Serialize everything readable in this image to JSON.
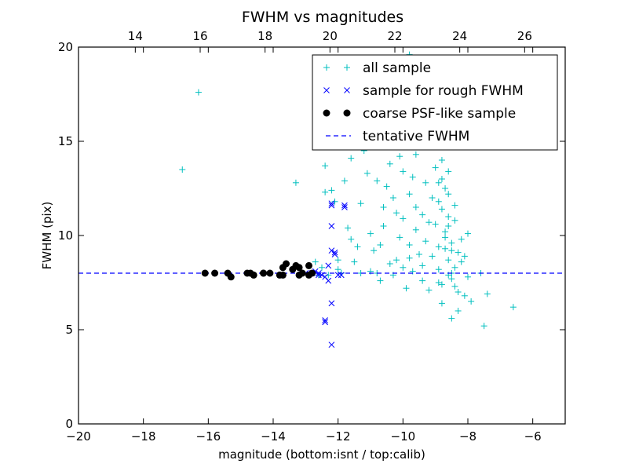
{
  "chart_data": {
    "type": "scatter",
    "title": "FWHM vs magnitudes",
    "xlabel": "magnitude (bottom:isnt / top:calib)",
    "ylabel": "FWHM (pix)",
    "xlim": [
      -20,
      -5
    ],
    "ylim": [
      0,
      20
    ],
    "x_ticks": [
      -20,
      -18,
      -16,
      -14,
      -12,
      -10,
      -8,
      -6
    ],
    "x_tick_labels": [
      "−20",
      "−18",
      "−16",
      "−14",
      "−12",
      "−10",
      "−8",
      "−6"
    ],
    "y_ticks": [
      0,
      5,
      10,
      15,
      20
    ],
    "y_tick_labels": [
      "0",
      "5",
      "10",
      "15",
      "20"
    ],
    "top_axis": {
      "offset": 32.25,
      "ticks": [
        14,
        16,
        18,
        20,
        22,
        24,
        26
      ],
      "tick_labels": [
        "14",
        "16",
        "18",
        "20",
        "22",
        "24",
        "26"
      ]
    },
    "grid": false,
    "legend_position": "top-right",
    "colors": {
      "all_sample": "#00bfbf",
      "rough": "#0000ff",
      "coarse": "#000000",
      "tentative": "#0000ff"
    },
    "series": [
      {
        "name": "all sample",
        "marker": "plus",
        "points": [
          [
            -16.8,
            13.5
          ],
          [
            -16.3,
            17.6
          ],
          [
            -13.3,
            12.8
          ],
          [
            -12.4,
            13.7
          ],
          [
            -12.4,
            12.3
          ],
          [
            -12.2,
            12.4
          ],
          [
            -12.0,
            8.2
          ],
          [
            -11.9,
            8.0
          ],
          [
            -12.3,
            7.9
          ],
          [
            -12.5,
            8.3
          ],
          [
            -11.8,
            12.9
          ],
          [
            -11.6,
            14.1
          ],
          [
            -11.6,
            9.8
          ],
          [
            -11.3,
            8.0
          ],
          [
            -11.2,
            14.5
          ],
          [
            -11.1,
            13.3
          ],
          [
            -11.0,
            8.1
          ],
          [
            -10.8,
            8.0
          ],
          [
            -10.7,
            9.5
          ],
          [
            -10.6,
            10.5
          ],
          [
            -10.5,
            12.6
          ],
          [
            -10.4,
            8.5
          ],
          [
            -10.3,
            7.9
          ],
          [
            -10.2,
            11.2
          ],
          [
            -10.1,
            9.9
          ],
          [
            -10.0,
            13.4
          ],
          [
            -9.9,
            7.2
          ],
          [
            -9.8,
            12.2
          ],
          [
            -9.8,
            8.8
          ],
          [
            -9.6,
            11.5
          ],
          [
            -9.5,
            9.0
          ],
          [
            -9.4,
            7.6
          ],
          [
            -9.3,
            12.8
          ],
          [
            -9.2,
            10.7
          ],
          [
            -9.1,
            8.9
          ],
          [
            -9.0,
            13.6
          ],
          [
            -8.9,
            11.8
          ],
          [
            -8.9,
            9.4
          ],
          [
            -8.8,
            7.4
          ],
          [
            -8.7,
            12.5
          ],
          [
            -8.7,
            10.2
          ],
          [
            -8.6,
            8.7
          ],
          [
            -8.6,
            11.0
          ],
          [
            -8.5,
            9.6
          ],
          [
            -8.5,
            7.7
          ],
          [
            -8.4,
            10.8
          ],
          [
            -8.4,
            8.3
          ],
          [
            -8.3,
            9.1
          ],
          [
            -8.3,
            7.0
          ],
          [
            -8.2,
            8.6
          ],
          [
            -8.1,
            6.8
          ],
          [
            -8.0,
            7.8
          ],
          [
            -7.9,
            6.5
          ],
          [
            -7.6,
            8.0
          ],
          [
            -7.5,
            5.2
          ],
          [
            -7.4,
            6.9
          ],
          [
            -6.6,
            6.2
          ],
          [
            -8.6,
            12.2
          ],
          [
            -8.8,
            11.4
          ],
          [
            -9.0,
            10.6
          ],
          [
            -8.7,
            9.9
          ],
          [
            -8.5,
            9.2
          ],
          [
            -9.3,
            9.7
          ],
          [
            -9.6,
            10.3
          ],
          [
            -10.0,
            10.9
          ],
          [
            -10.2,
            8.7
          ],
          [
            -10.7,
            7.6
          ],
          [
            -9.7,
            8.1
          ],
          [
            -8.9,
            8.2
          ],
          [
            -8.4,
            11.6
          ],
          [
            -8.6,
            10.5
          ],
          [
            -8.8,
            13.0
          ],
          [
            -9.1,
            12.0
          ],
          [
            -9.4,
            11.1
          ],
          [
            -8.2,
            9.8
          ],
          [
            -8.0,
            10.1
          ],
          [
            -8.1,
            8.9
          ],
          [
            -8.3,
            6.0
          ],
          [
            -8.5,
            5.6
          ],
          [
            -8.8,
            6.4
          ],
          [
            -9.2,
            7.1
          ],
          [
            -10.3,
            12.0
          ],
          [
            -10.6,
            11.5
          ],
          [
            -10.9,
            9.2
          ],
          [
            -11.4,
            9.4
          ],
          [
            -11.7,
            10.4
          ],
          [
            -12.0,
            8.7
          ],
          [
            -12.6,
            7.9
          ],
          [
            -12.7,
            8.6
          ],
          [
            -9.6,
            14.3
          ],
          [
            -9.2,
            14.8
          ],
          [
            -8.8,
            14.0
          ],
          [
            -8.6,
            13.4
          ],
          [
            -8.9,
            12.8
          ],
          [
            -10.1,
            14.2
          ],
          [
            -10.4,
            13.8
          ],
          [
            -9.9,
            15.0
          ],
          [
            -9.5,
            16.0
          ],
          [
            -9.8,
            19.6
          ],
          [
            -10.2,
            16.8
          ],
          [
            -9.3,
            15.5
          ],
          [
            -8.7,
            9.3
          ],
          [
            -8.5,
            8.0
          ],
          [
            -8.4,
            7.3
          ],
          [
            -8.6,
            7.9
          ],
          [
            -8.9,
            7.5
          ],
          [
            -9.4,
            8.4
          ],
          [
            -9.8,
            9.5
          ],
          [
            -10.0,
            8.3
          ],
          [
            -11.0,
            10.1
          ],
          [
            -11.3,
            11.7
          ],
          [
            -12.1,
            11.8
          ],
          [
            -11.5,
            8.6
          ],
          [
            -10.8,
            12.9
          ],
          [
            -9.7,
            13.1
          ]
        ]
      },
      {
        "name": "sample for rough FWHM",
        "marker": "x",
        "points": [
          [
            -12.4,
            5.4
          ],
          [
            -12.4,
            5.5
          ],
          [
            -12.2,
            4.2
          ],
          [
            -12.2,
            6.4
          ],
          [
            -12.3,
            7.6
          ],
          [
            -12.3,
            8.4
          ],
          [
            -12.2,
            11.7
          ],
          [
            -12.2,
            11.6
          ],
          [
            -12.2,
            10.5
          ],
          [
            -12.2,
            9.2
          ],
          [
            -12.1,
            9.0
          ],
          [
            -12.1,
            9.1
          ],
          [
            -11.8,
            11.6
          ],
          [
            -11.8,
            11.5
          ],
          [
            -12.0,
            7.9
          ],
          [
            -11.9,
            7.9
          ],
          [
            -12.5,
            7.9
          ],
          [
            -12.6,
            8.0
          ],
          [
            -12.8,
            8.0
          ],
          [
            -13.0,
            8.0
          ],
          [
            -12.7,
            8.1
          ],
          [
            -12.6,
            7.9
          ],
          [
            -12.4,
            7.8
          ]
        ]
      },
      {
        "name": "coarse PSF-like sample",
        "marker": "circle",
        "points": [
          [
            -16.1,
            8.0
          ],
          [
            -15.8,
            8.0
          ],
          [
            -15.4,
            8.0
          ],
          [
            -15.3,
            7.8
          ],
          [
            -14.8,
            8.0
          ],
          [
            -14.7,
            8.0
          ],
          [
            -14.6,
            7.9
          ],
          [
            -14.3,
            8.0
          ],
          [
            -14.3,
            8.0
          ],
          [
            -14.1,
            8.0
          ],
          [
            -13.8,
            7.9
          ],
          [
            -13.7,
            8.3
          ],
          [
            -13.6,
            8.5
          ],
          [
            -13.7,
            7.9
          ],
          [
            -13.4,
            8.2
          ],
          [
            -13.3,
            8.4
          ],
          [
            -13.2,
            8.3
          ],
          [
            -13.1,
            8.0
          ],
          [
            -13.2,
            7.9
          ],
          [
            -12.9,
            7.9
          ],
          [
            -12.9,
            8.4
          ],
          [
            -12.8,
            8.0
          ]
        ]
      },
      {
        "name": "tentative FWHM",
        "marker": "dashed-line",
        "y": 8.0
      }
    ]
  }
}
